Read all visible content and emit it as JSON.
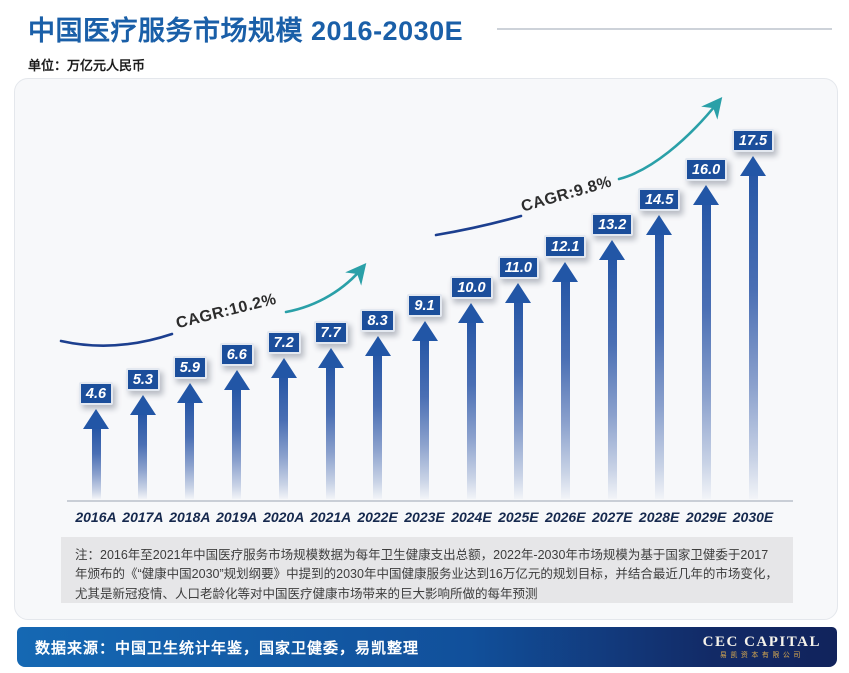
{
  "header": {
    "title": "中国医疗服务市场规模 2016-2030E",
    "unit_label": "单位：万亿元人民币"
  },
  "chart_data": {
    "type": "bar",
    "title": "中国医疗服务市场规模 2016-2030E",
    "ylabel": "万亿元人民币",
    "xlabel": "",
    "categories": [
      "2016A",
      "2017A",
      "2018A",
      "2019A",
      "2020A",
      "2021A",
      "2022E",
      "2023E",
      "2024E",
      "2025E",
      "2026E",
      "2027E",
      "2028E",
      "2029E",
      "2030E"
    ],
    "values": [
      4.6,
      5.3,
      5.9,
      6.6,
      7.2,
      7.7,
      8.3,
      9.1,
      10.0,
      11.0,
      12.1,
      13.2,
      14.5,
      16.0,
      17.5
    ],
    "value_labels": [
      "4.6",
      "5.3",
      "5.9",
      "6.6",
      "7.2",
      "7.7",
      "8.3",
      "9.1",
      "10.0",
      "11.0",
      "12.1",
      "13.2",
      "14.5",
      "16.0",
      "17.5"
    ],
    "ylim": [
      0,
      20
    ],
    "grid": false,
    "legend_position": "none",
    "annotations": [
      {
        "label": "CAGR:10.2%",
        "span": "2016A-2022E"
      },
      {
        "label": "CAGR:9.8%",
        "span": "2022E-2030E"
      }
    ]
  },
  "note": {
    "text": "注：2016年至2021年中国医疗服务市场规模数据为每年卫生健康支出总额，2022年-2030年市场规模为基于国家卫健委于2017年颁布的《“健康中国2030”规划纲要》中提到的2030年中国健康服务业达到16万亿元的规划目标，并结合最近几年的市场变化，尤其是新冠疫情、人口老龄化等对中国医疗健康市场带来的巨大影响所做的每年预测"
  },
  "footer": {
    "source_text": "数据来源：中国卫生统计年鉴，国家卫健委，易凯整理",
    "logo_primary": "CEC CAPITAL",
    "logo_secondary": "易凯资本有限公司"
  },
  "colors": {
    "title_blue": "#1a5fa8",
    "bar_blue": "#2256a6",
    "box_blue": "#1b4e9b",
    "trend_navy": "#1c3f8f",
    "trend_teal": "#2aa0a8",
    "footer_left": "#1568b3",
    "footer_right": "#11235c",
    "note_bg": "#e6e6e8",
    "card_bg": "#f7f8fa"
  }
}
